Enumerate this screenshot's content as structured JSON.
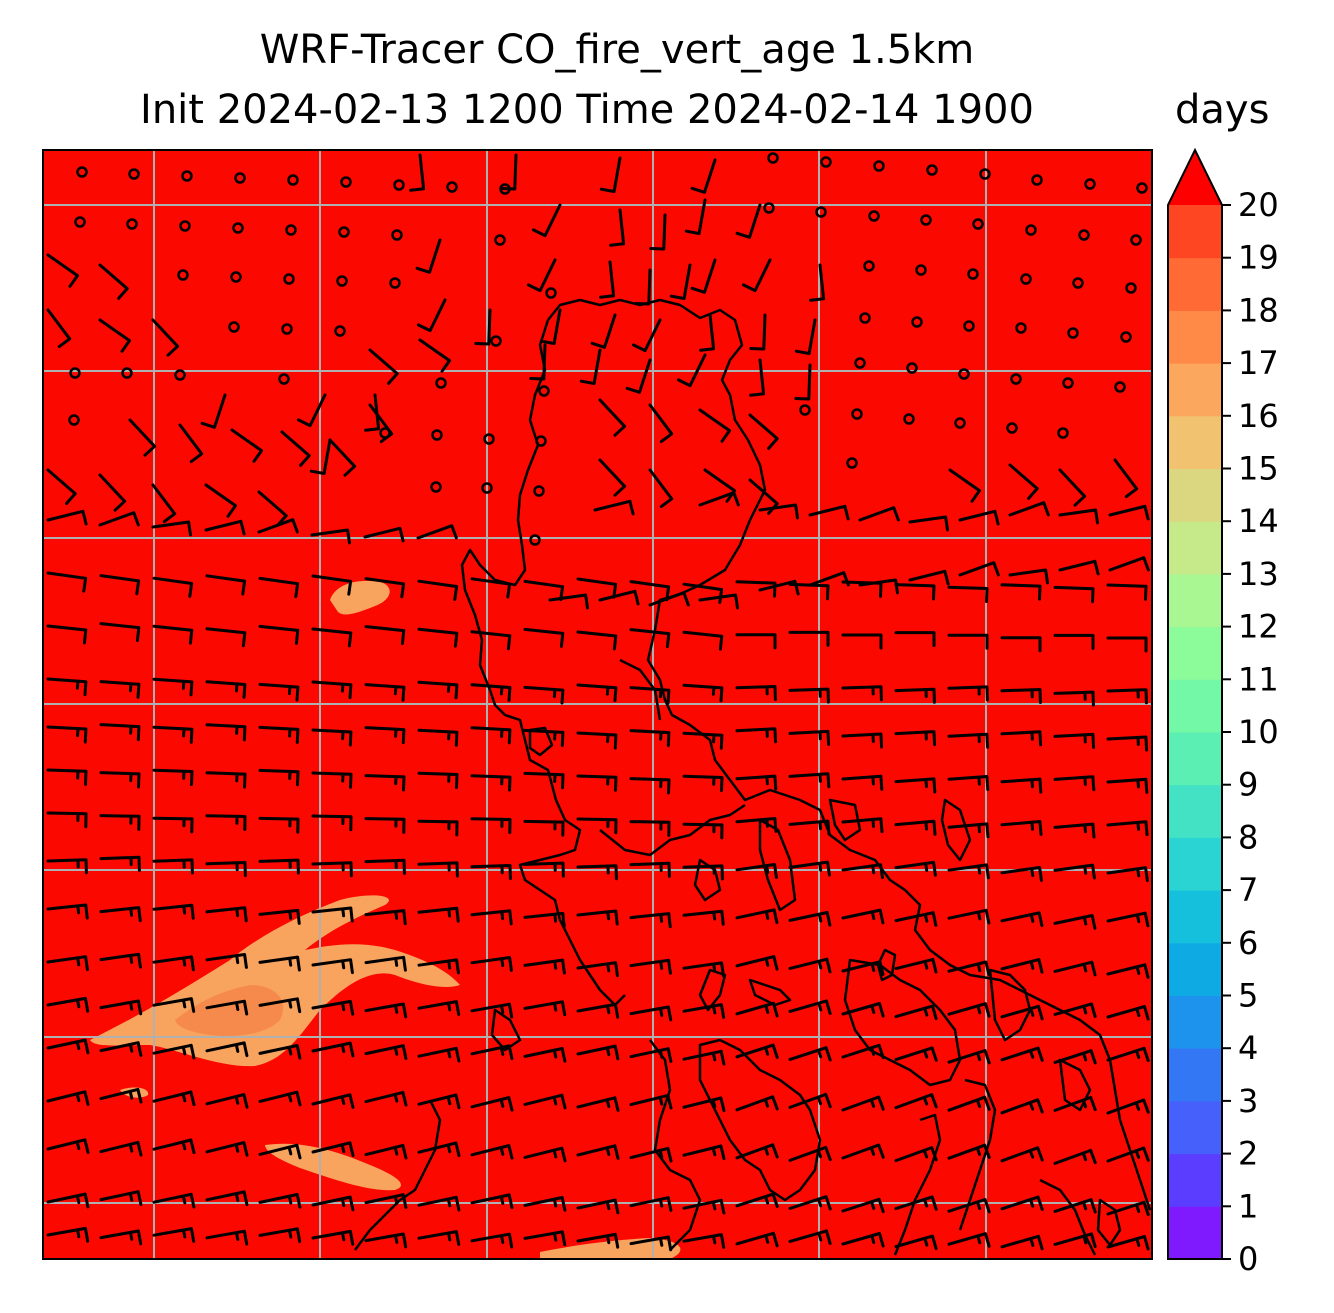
{
  "title": {
    "line1": "WRF-Tracer CO_fire_vert_age 1.5km",
    "line2": "Init 2024-02-13 1200 Time 2024-02-14 1900"
  },
  "colorbar": {
    "units": "days",
    "min": 0,
    "max": 20,
    "extend": "max",
    "tick_labels": [
      "0",
      "1",
      "2",
      "3",
      "4",
      "5",
      "6",
      "7",
      "8",
      "9",
      "10",
      "11",
      "12",
      "13",
      "14",
      "15",
      "16",
      "17",
      "18",
      "19",
      "20"
    ],
    "colors": [
      "#7f1aff",
      "#5b3dff",
      "#4560fb",
      "#3377f5",
      "#1e93ed",
      "#0eaae3",
      "#14c0dc",
      "#2ad4d2",
      "#43e2c4",
      "#5befb4",
      "#72f8a6",
      "#8cfb99",
      "#a8f792",
      "#c6ea8a",
      "#dbd680",
      "#f1c26f",
      "#fca75e",
      "#ff8a48",
      "#ff6a35",
      "#ff4623",
      "#ff1f0d"
    ],
    "over_color": "#fe0000"
  },
  "map": {
    "field_background": "#fb0800",
    "plume_color": "#f8a35e",
    "grid": "on",
    "gridline_color": "#b0b0b0",
    "coastline_color": "#000000",
    "wind_barb_color": "#000000"
  }
}
